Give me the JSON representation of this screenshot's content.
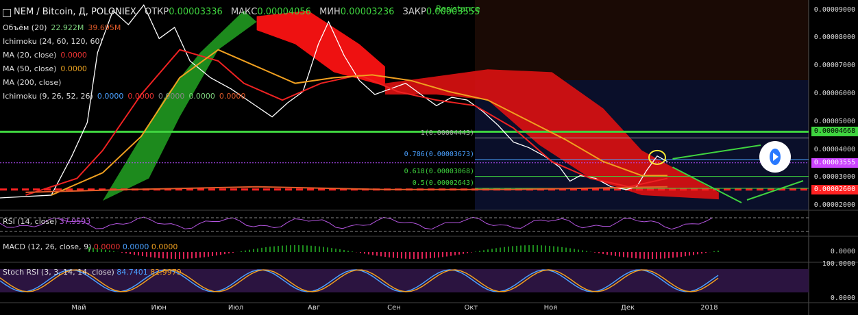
{
  "header": {
    "symbol": "NEM / Bitcoin, Д, POLONIEX",
    "open_label": "ОТКР",
    "open": "0.00003336",
    "high_label": "МАКС",
    "high": "0.00004056",
    "low_label": "МИН",
    "low": "0.00003236",
    "close_label": "ЗАКР",
    "close": "0.00003555",
    "resistance": "Resistance"
  },
  "indicators": [
    {
      "name": "Объём (20)",
      "v1": "22.922M",
      "v2": "39.695M"
    },
    {
      "name": "Ichimoku (24, 60, 120, 60)"
    },
    {
      "name": "MA (20, close)",
      "v1": "0.0000"
    },
    {
      "name": "MA (50, close)",
      "v1": "0.0000"
    },
    {
      "name": "MA (200, close)"
    },
    {
      "name": "Ichimoku (9, 26, 52, 26)",
      "v1": "0.0000",
      "v2": "0.0000",
      "v3": "0.0000",
      "v4": "0.0000",
      "v5": "0.0000"
    }
  ],
  "panels": {
    "rsi": {
      "name": "RSI (14, close)",
      "value": "37.9593"
    },
    "macd": {
      "name": "MACD (12, 26, close, 9)",
      "v1": "0.0000",
      "v2": "0.0000",
      "v3": "0.0000",
      "ylabel": "0.0000"
    },
    "stoch": {
      "name": "Stoch RSI (3, 3, 14, 14, close)",
      "v1": "84.7401",
      "v2": "82.9979",
      "y_top": "100.0000",
      "y_bottom": "0.0000"
    }
  },
  "fib_levels": [
    {
      "label": "1(0.00004443)",
      "value": 4.443e-05,
      "color": "#aaaaaa"
    },
    {
      "label": "0.786(0.00003673)",
      "value": 3.673e-05,
      "color": "#4aa0ff"
    },
    {
      "label": "0.618(0.00003068)",
      "value": 3.068e-05,
      "color": "#3fd43f"
    },
    {
      "label": "0.5(0.00002643)",
      "value": 2.643e-05,
      "color": "#3fd43f"
    }
  ],
  "price_tags": [
    {
      "label": "0.00004668",
      "value": 4.668e-05,
      "color": "#3fd43f"
    },
    {
      "label": "0.00003555",
      "value": 3.555e-05,
      "color": "#cc44ff"
    },
    {
      "label": "0.00002600",
      "value": 2.6e-05,
      "color": "#ff2222"
    }
  ],
  "chart_data": {
    "type": "line",
    "y_ticks": [
      "0.00009000",
      "0.00008000",
      "0.00007000",
      "0.00006000",
      "0.00005000",
      "0.00004000",
      "0.00003000",
      "0.00002000"
    ],
    "y_range": [
      1.86e-05,
      9.38e-05
    ],
    "x_ticks": [
      "Май",
      "Июн",
      "Июл",
      "Авг",
      "Сен",
      "Окт",
      "Ноя",
      "Дек",
      "2018"
    ],
    "x_range": [
      0,
      315
    ],
    "x_tick_days": [
      30,
      61,
      91,
      122,
      153,
      183,
      214,
      244,
      275
    ],
    "horizontal_lines": [
      4.668e-05,
      3.555e-05,
      2.6e-05
    ],
    "series": [
      {
        "color": "#ffffff",
        "values": [
          [
            0,
            2.3e-05
          ],
          [
            20,
            2.4e-05
          ],
          [
            28,
            3.8e-05
          ],
          [
            34,
            5e-05
          ],
          [
            38,
            7.5e-05
          ],
          [
            44,
            9e-05
          ],
          [
            50,
            8.5e-05
          ],
          [
            56,
            9.2e-05
          ],
          [
            62,
            8e-05
          ],
          [
            68,
            8.4e-05
          ],
          [
            74,
            7.2e-05
          ],
          [
            82,
            6.6e-05
          ],
          [
            90,
            6.2e-05
          ],
          [
            98,
            5.7e-05
          ],
          [
            106,
            5.2e-05
          ],
          [
            112,
            5.7e-05
          ],
          [
            118,
            6.1e-05
          ],
          [
            124,
            7.8e-05
          ],
          [
            128,
            8.6e-05
          ],
          [
            134,
            7.4e-05
          ],
          [
            140,
            6.5e-05
          ],
          [
            146,
            6e-05
          ],
          [
            152,
            6.2e-05
          ],
          [
            158,
            6.4e-05
          ],
          [
            164,
            6e-05
          ],
          [
            170,
            5.6e-05
          ],
          [
            176,
            5.9e-05
          ],
          [
            182,
            5.8e-05
          ],
          [
            188,
            5.4e-05
          ],
          [
            194,
            4.9e-05
          ],
          [
            200,
            4.3e-05
          ],
          [
            206,
            4.1e-05
          ],
          [
            212,
            3.8e-05
          ],
          [
            218,
            3.4e-05
          ],
          [
            222,
            2.9e-05
          ],
          [
            226,
            3.1e-05
          ],
          [
            232,
            3e-05
          ],
          [
            238,
            2.7e-05
          ],
          [
            244,
            2.6e-05
          ],
          [
            248,
            2.7e-05
          ],
          [
            252,
            3.3e-05
          ],
          [
            256,
            3.8e-05
          ],
          [
            260,
            3.6e-05
          ]
        ]
      },
      {
        "color": "#ee2222",
        "values": [
          [
            10,
            2.4e-05
          ],
          [
            30,
            3e-05
          ],
          [
            40,
            4e-05
          ],
          [
            55,
            6e-05
          ],
          [
            70,
            7.6e-05
          ],
          [
            85,
            7.2e-05
          ],
          [
            95,
            6.4e-05
          ],
          [
            110,
            5.8e-05
          ],
          [
            125,
            6.4e-05
          ],
          [
            140,
            6.7e-05
          ],
          [
            155,
            6.1e-05
          ],
          [
            170,
            5.8e-05
          ],
          [
            185,
            5.6e-05
          ],
          [
            200,
            4.8e-05
          ],
          [
            215,
            3.6e-05
          ],
          [
            230,
            3e-05
          ],
          [
            245,
            2.7e-05
          ],
          [
            260,
            3e-05
          ]
        ]
      },
      {
        "color": "#f0a020",
        "values": [
          [
            20,
            2.4e-05
          ],
          [
            40,
            3.2e-05
          ],
          [
            55,
            4.5e-05
          ],
          [
            70,
            6.6e-05
          ],
          [
            85,
            7.6e-05
          ],
          [
            100,
            7e-05
          ],
          [
            115,
            6.4e-05
          ],
          [
            130,
            6.6e-05
          ],
          [
            145,
            6.7e-05
          ],
          [
            160,
            6.5e-05
          ],
          [
            175,
            6.1e-05
          ],
          [
            190,
            5.8e-05
          ],
          [
            205,
            5.1e-05
          ],
          [
            220,
            4.4e-05
          ],
          [
            235,
            3.6e-05
          ],
          [
            250,
            3.1e-05
          ],
          [
            260,
            3.1e-05
          ]
        ]
      },
      {
        "color": "#e35b2a",
        "values": [
          [
            10,
            2.5e-05
          ],
          [
            50,
            2.6e-05
          ],
          [
            100,
            2.7e-05
          ],
          [
            150,
            2.6e-05
          ],
          [
            200,
            2.6e-05
          ],
          [
            260,
            2.7e-05
          ]
        ]
      }
    ]
  }
}
